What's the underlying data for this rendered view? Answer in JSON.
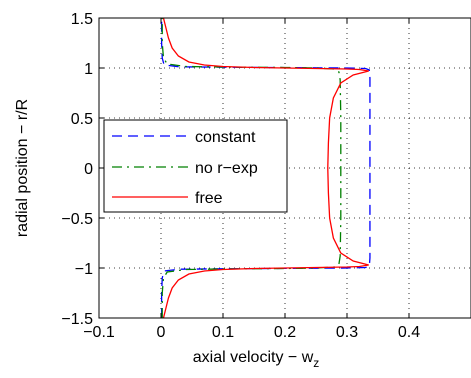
{
  "chart_data": {
    "type": "line",
    "title": "",
    "xlabel": "axial velocity − w",
    "xlabel_sub": "z",
    "ylabel": "radial position − r/R",
    "xlim": [
      -0.1,
      0.5
    ],
    "ylim": [
      -1.5,
      1.5
    ],
    "xticks": [
      -0.1,
      0,
      0.1,
      0.2,
      0.3,
      0.4
    ],
    "xtick_labels": [
      "−0.1",
      "0",
      "0.1",
      "0.2",
      "0.3",
      "0.4"
    ],
    "yticks": [
      -1.5,
      -1,
      -0.5,
      0,
      0.5,
      1,
      1.5
    ],
    "ytick_labels": [
      "−1.5",
      "−1",
      "−0.5",
      "0",
      "0.5",
      "1",
      "1.5"
    ],
    "grid": true,
    "legend_position": "center-left",
    "series": [
      {
        "name": "constant",
        "color": "#0000ff",
        "dash": "dashed",
        "points": [
          [
            0.001,
            -1.5
          ],
          [
            0.001,
            -1.25
          ],
          [
            0.002,
            -1.1
          ],
          [
            0.005,
            -1.03
          ],
          [
            0.03,
            -1.012
          ],
          [
            0.1,
            -1.008
          ],
          [
            0.2,
            -1.004
          ],
          [
            0.3,
            -1.0
          ],
          [
            0.33,
            -0.995
          ],
          [
            0.336,
            -0.98
          ],
          [
            0.337,
            -0.9
          ],
          [
            0.337,
            0.9
          ],
          [
            0.336,
            0.98
          ],
          [
            0.33,
            0.995
          ],
          [
            0.3,
            1.0
          ],
          [
            0.2,
            1.004
          ],
          [
            0.1,
            1.008
          ],
          [
            0.03,
            1.012
          ],
          [
            0.005,
            1.03
          ],
          [
            0.002,
            1.1
          ],
          [
            0.001,
            1.25
          ],
          [
            0.001,
            1.5
          ]
        ]
      },
      {
        "name": "no r−exp",
        "color": "#008000",
        "dash": "dashdot",
        "points": [
          [
            0.002,
            -1.5
          ],
          [
            0.002,
            -1.25
          ],
          [
            0.004,
            -1.1
          ],
          [
            0.01,
            -1.04
          ],
          [
            0.04,
            -1.015
          ],
          [
            0.1,
            -1.01
          ],
          [
            0.2,
            -1.005
          ],
          [
            0.25,
            -1.0
          ],
          [
            0.28,
            -0.99
          ],
          [
            0.287,
            -0.96
          ],
          [
            0.289,
            -0.88
          ],
          [
            0.29,
            -0.5
          ],
          [
            0.29,
            0.0
          ],
          [
            0.29,
            0.5
          ],
          [
            0.289,
            0.88
          ],
          [
            0.287,
            0.96
          ],
          [
            0.28,
            0.99
          ],
          [
            0.25,
            1.0
          ],
          [
            0.2,
            1.005
          ],
          [
            0.1,
            1.01
          ],
          [
            0.04,
            1.015
          ],
          [
            0.01,
            1.04
          ],
          [
            0.004,
            1.1
          ],
          [
            0.002,
            1.25
          ],
          [
            0.002,
            1.5
          ]
        ]
      },
      {
        "name": "free",
        "color": "#ff0000",
        "dash": "solid",
        "points": [
          [
            0.004,
            -1.5
          ],
          [
            0.008,
            -1.4
          ],
          [
            0.012,
            -1.3
          ],
          [
            0.018,
            -1.2
          ],
          [
            0.028,
            -1.12
          ],
          [
            0.045,
            -1.06
          ],
          [
            0.07,
            -1.03
          ],
          [
            0.1,
            -1.015
          ],
          [
            0.15,
            -1.005
          ],
          [
            0.2,
            -1.0
          ],
          [
            0.25,
            -0.995
          ],
          [
            0.3,
            -0.99
          ],
          [
            0.32,
            -0.985
          ],
          [
            0.335,
            -0.97
          ],
          [
            0.31,
            -0.93
          ],
          [
            0.29,
            -0.85
          ],
          [
            0.278,
            -0.7
          ],
          [
            0.272,
            -0.5
          ],
          [
            0.27,
            -0.25
          ],
          [
            0.269,
            0.0
          ],
          [
            0.27,
            0.25
          ],
          [
            0.272,
            0.5
          ],
          [
            0.278,
            0.7
          ],
          [
            0.29,
            0.85
          ],
          [
            0.31,
            0.93
          ],
          [
            0.335,
            0.97
          ],
          [
            0.32,
            0.985
          ],
          [
            0.3,
            0.99
          ],
          [
            0.25,
            0.995
          ],
          [
            0.2,
            1.0
          ],
          [
            0.15,
            1.005
          ],
          [
            0.1,
            1.015
          ],
          [
            0.07,
            1.03
          ],
          [
            0.045,
            1.06
          ],
          [
            0.028,
            1.12
          ],
          [
            0.018,
            1.2
          ],
          [
            0.012,
            1.3
          ],
          [
            0.008,
            1.4
          ],
          [
            0.004,
            1.5
          ]
        ]
      }
    ]
  }
}
